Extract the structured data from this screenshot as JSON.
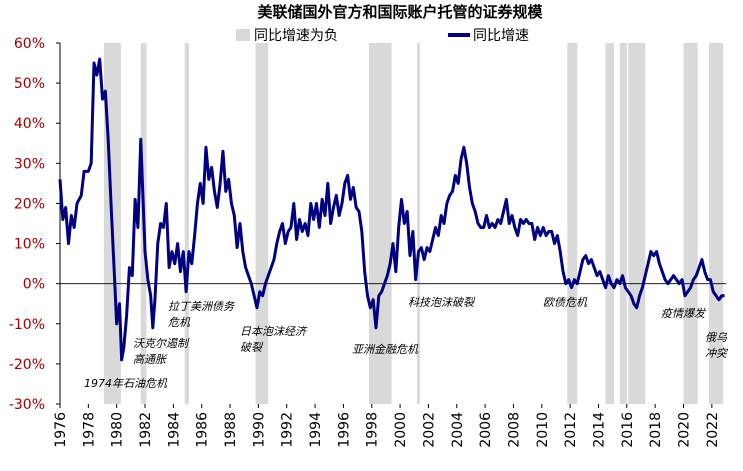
{
  "chart_data": {
    "type": "line",
    "title": "美联储国外官方和国际账户托管的证券规模",
    "xlim": [
      1976,
      2023
    ],
    "xticks": [
      1976,
      1978,
      1980,
      1982,
      1984,
      1986,
      1988,
      1990,
      1992,
      1994,
      1996,
      1998,
      2000,
      2002,
      2004,
      2006,
      2008,
      2010,
      2012,
      2014,
      2016,
      2018,
      2020,
      2022
    ],
    "ylim": [
      -30,
      60
    ],
    "yticks": [
      {
        "value": 60,
        "label": "60%"
      },
      {
        "value": 50,
        "label": "50%"
      },
      {
        "value": 40,
        "label": "40%"
      },
      {
        "value": 30,
        "label": "30%"
      },
      {
        "value": 20,
        "label": "20%"
      },
      {
        "value": 10,
        "label": "10%"
      },
      {
        "value": 0,
        "label": "0%"
      },
      {
        "value": -10,
        "label": "-10%"
      },
      {
        "value": -20,
        "label": "-20%"
      },
      {
        "value": -30,
        "label": "-30%"
      }
    ],
    "shaded": {
      "name": "同比增速为负",
      "color": "#d9d9d9",
      "spans": [
        [
          1979.1,
          1980.3
        ],
        [
          1981.7,
          1982.1
        ],
        [
          1984.8,
          1985.1
        ],
        [
          1989.8,
          1990.7
        ],
        [
          1997.8,
          1999.4
        ],
        [
          2001.2,
          2001.4
        ],
        [
          2011.8,
          2012.5
        ],
        [
          2014.5,
          2015.1
        ],
        [
          2015.5,
          2016.0
        ],
        [
          2016.1,
          2017.3
        ],
        [
          2020.0,
          2021.0
        ],
        [
          2021.8,
          2022.8
        ]
      ]
    },
    "series": [
      {
        "name": "同比增速",
        "color": "#000080",
        "x": [
          1976.0,
          1976.2,
          1976.4,
          1976.6,
          1976.8,
          1977.0,
          1977.2,
          1977.5,
          1977.7,
          1978.0,
          1978.2,
          1978.4,
          1978.6,
          1978.8,
          1979.0,
          1979.2,
          1979.4,
          1979.6,
          1979.8,
          1980.0,
          1980.2,
          1980.35,
          1980.5,
          1980.7,
          1980.9,
          1981.1,
          1981.3,
          1981.5,
          1981.7,
          1981.85,
          1982.0,
          1982.2,
          1982.4,
          1982.55,
          1982.7,
          1982.9,
          1983.1,
          1983.3,
          1983.5,
          1983.7,
          1983.9,
          1984.1,
          1984.3,
          1984.5,
          1984.7,
          1984.9,
          1985.1,
          1985.3,
          1985.5,
          1985.7,
          1985.9,
          1986.1,
          1986.3,
          1986.5,
          1986.7,
          1986.9,
          1987.1,
          1987.3,
          1987.5,
          1987.7,
          1987.9,
          1988.1,
          1988.3,
          1988.5,
          1988.7,
          1988.9,
          1989.1,
          1989.3,
          1989.5,
          1989.7,
          1989.9,
          1990.1,
          1990.3,
          1990.5,
          1990.7,
          1990.9,
          1991.1,
          1991.3,
          1991.5,
          1991.7,
          1991.9,
          1992.1,
          1992.3,
          1992.5,
          1992.7,
          1992.9,
          1993.1,
          1993.3,
          1993.5,
          1993.7,
          1993.9,
          1994.1,
          1994.3,
          1994.5,
          1994.7,
          1994.9,
          1995.1,
          1995.3,
          1995.5,
          1995.7,
          1995.9,
          1996.1,
          1996.3,
          1996.5,
          1996.7,
          1996.9,
          1997.1,
          1997.3,
          1997.5,
          1997.7,
          1997.9,
          1998.1,
          1998.3,
          1998.5,
          1998.7,
          1998.9,
          1999.1,
          1999.3,
          1999.5,
          1999.7,
          1999.9,
          2000.1,
          2000.3,
          2000.5,
          2000.7,
          2000.9,
          2001.1,
          2001.3,
          2001.5,
          2001.7,
          2001.9,
          2002.1,
          2002.3,
          2002.5,
          2002.7,
          2002.9,
          2003.1,
          2003.3,
          2003.5,
          2003.7,
          2003.9,
          2004.1,
          2004.3,
          2004.5,
          2004.7,
          2004.9,
          2005.1,
          2005.3,
          2005.5,
          2005.7,
          2005.9,
          2006.1,
          2006.3,
          2006.5,
          2006.7,
          2006.9,
          2007.1,
          2007.3,
          2007.5,
          2007.7,
          2007.9,
          2008.1,
          2008.3,
          2008.5,
          2008.7,
          2008.9,
          2009.1,
          2009.3,
          2009.5,
          2009.7,
          2009.9,
          2010.1,
          2010.3,
          2010.5,
          2010.7,
          2010.9,
          2011.1,
          2011.3,
          2011.5,
          2011.7,
          2011.9,
          2012.1,
          2012.3,
          2012.5,
          2012.7,
          2012.9,
          2013.1,
          2013.3,
          2013.5,
          2013.7,
          2013.9,
          2014.1,
          2014.3,
          2014.5,
          2014.7,
          2014.9,
          2015.1,
          2015.3,
          2015.5,
          2015.7,
          2015.9,
          2016.1,
          2016.3,
          2016.5,
          2016.7,
          2016.9,
          2017.1,
          2017.3,
          2017.5,
          2017.7,
          2017.9,
          2018.1,
          2018.3,
          2018.5,
          2018.7,
          2018.9,
          2019.1,
          2019.3,
          2019.5,
          2019.7,
          2019.9,
          2020.1,
          2020.3,
          2020.5,
          2020.7,
          2020.9,
          2021.1,
          2021.3,
          2021.5,
          2021.7,
          2021.9,
          2022.1,
          2022.3,
          2022.5,
          2022.7,
          2022.9
        ],
        "values": [
          26,
          16,
          19,
          10,
          17,
          14,
          20,
          22,
          28,
          28,
          30,
          55,
          52,
          56,
          46,
          48,
          36,
          20,
          5,
          -10,
          -5,
          -19,
          -16,
          -8,
          4,
          2,
          21,
          14,
          36,
          22,
          8,
          1,
          -3,
          -11,
          -4,
          10,
          15,
          14,
          20,
          4,
          8,
          5,
          10,
          3,
          8,
          -2,
          8,
          5,
          12,
          20,
          25,
          20,
          34,
          26,
          29,
          23,
          19,
          25,
          33,
          23,
          26,
          20,
          17,
          9,
          15,
          8,
          4,
          2,
          0,
          -3,
          -6,
          -2,
          -3,
          0,
          2,
          4,
          6,
          10,
          13,
          15,
          10,
          13,
          14,
          20,
          11,
          16,
          13,
          15,
          12,
          20,
          16,
          20,
          14,
          21,
          17,
          25,
          15,
          19,
          22,
          17,
          20,
          25,
          27,
          21,
          24,
          19,
          18,
          13,
          3,
          -3,
          -6,
          -4,
          -11,
          -3,
          -2,
          0,
          2,
          5,
          10,
          3,
          14,
          21,
          15,
          18,
          7,
          13,
          1,
          8,
          9,
          6,
          9,
          8,
          11,
          14,
          12,
          17,
          15,
          20,
          22,
          23,
          27,
          25,
          31,
          34,
          30,
          24,
          20,
          18,
          15,
          14,
          14,
          17,
          14,
          15,
          14,
          16,
          15,
          18,
          21,
          15,
          17,
          14,
          12,
          16,
          15,
          16,
          15,
          15,
          11,
          14,
          12,
          14,
          12,
          13,
          13,
          10,
          12,
          8,
          3,
          0,
          1,
          -1,
          1,
          0,
          3,
          6,
          7,
          5,
          6,
          4,
          2,
          3,
          1,
          -1,
          2,
          0,
          -1,
          1,
          0,
          2,
          -1,
          -2,
          -3,
          -5,
          -6,
          -3,
          -1,
          2,
          5,
          8,
          7,
          8,
          5,
          3,
          1,
          0,
          1,
          2,
          1,
          0,
          1,
          -3,
          -2,
          -1,
          1,
          2,
          4,
          6,
          3,
          1,
          1,
          -2,
          -3,
          -4,
          -3,
          -3
        ]
      }
    ],
    "annotations": [
      [
        "1974年石油危机"
      ],
      [
        "沃克尔遏制",
        "高通胀"
      ],
      [
        "拉丁美洲债务",
        "危机"
      ],
      [
        "日本泡沫经济",
        "破裂"
      ],
      [
        "亚洲金融危机"
      ],
      [
        "科技泡沫破裂"
      ],
      [
        "欧债危机"
      ],
      [
        "疫情爆发"
      ],
      [
        "俄乌",
        "冲突"
      ]
    ]
  }
}
